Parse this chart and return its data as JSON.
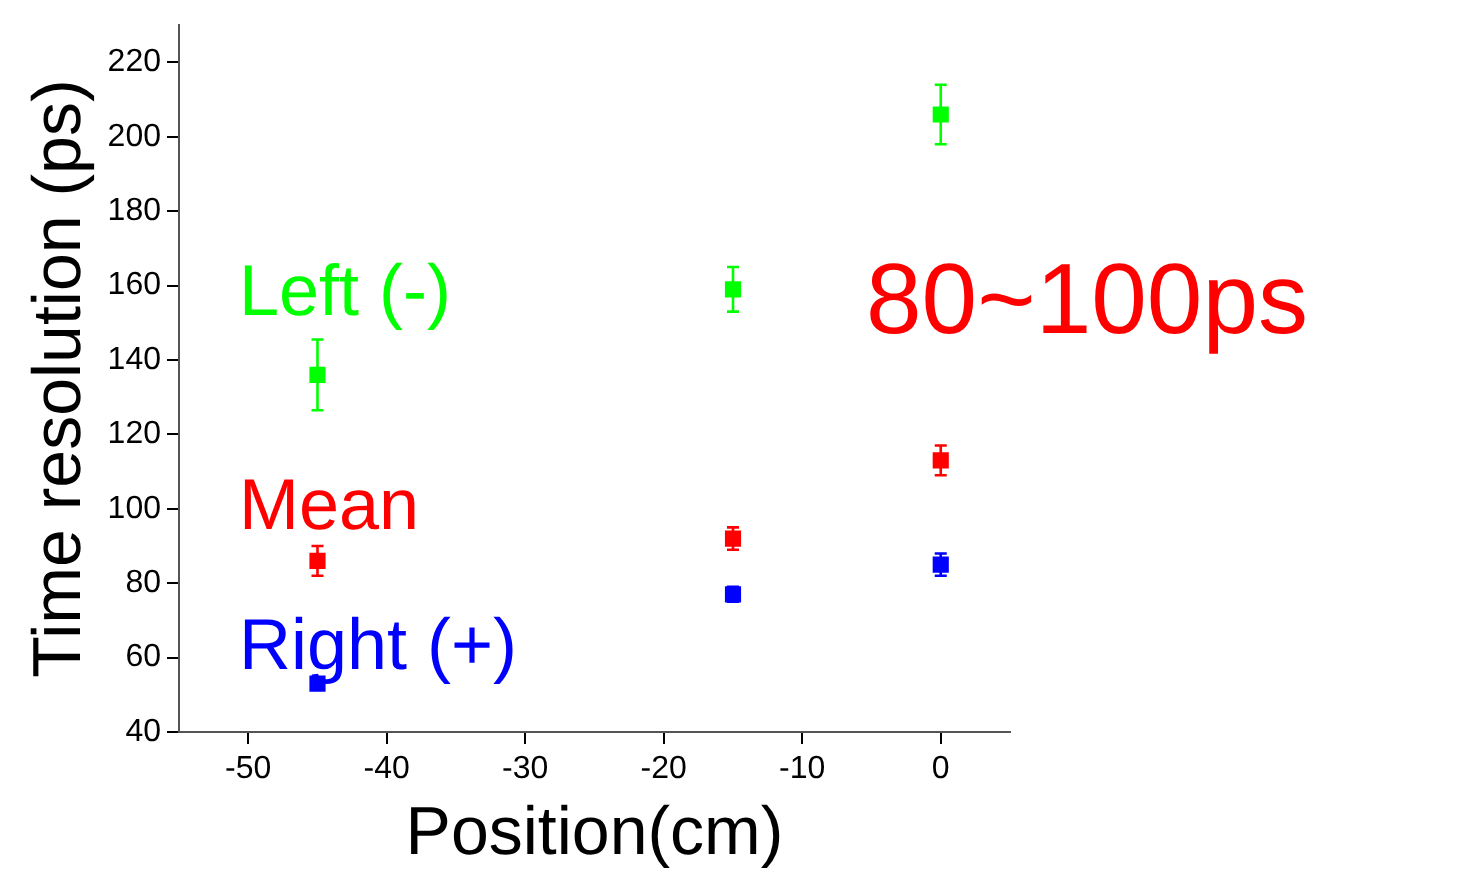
{
  "chart_data": {
    "type": "scatter",
    "xlabel": "Position(cm)",
    "ylabel": "Time resolution (ps)",
    "x": [
      -45,
      -15,
      0
    ],
    "series": [
      {
        "name": "Left (-)",
        "color": "#00ff00",
        "values": [
          136,
          159,
          206
        ],
        "errors": [
          9.5,
          6,
          8
        ]
      },
      {
        "name": "Mean",
        "color": "#ff0000",
        "values": [
          86,
          92,
          113
        ],
        "errors": [
          4,
          3,
          4
        ]
      },
      {
        "name": "Right (+)",
        "color": "#0000ff",
        "values": [
          53,
          77,
          85
        ],
        "errors": [
          null,
          2,
          3
        ]
      }
    ],
    "xlim": [
      -55,
      5
    ],
    "xticks": [
      -50,
      -40,
      -30,
      -20,
      -10,
      0
    ],
    "ylim": [
      40,
      230
    ],
    "yticks": [
      40,
      60,
      80,
      100,
      120,
      140,
      160,
      180,
      200,
      220
    ],
    "marker": "square",
    "grid": false,
    "legend": false,
    "annotations": [
      "80~100ps"
    ]
  }
}
